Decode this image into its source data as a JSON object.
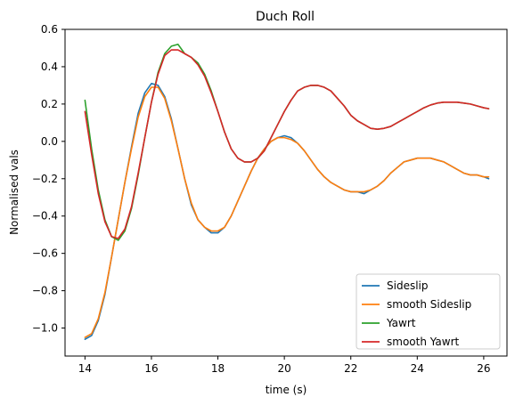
{
  "chart_data": {
    "type": "line",
    "title": "Duch Roll",
    "xlabel": "time (s)",
    "ylabel": "Normalised vals",
    "xlim": [
      13.4,
      26.7
    ],
    "ylim": [
      -1.15,
      0.6
    ],
    "xticks": [
      14,
      16,
      18,
      20,
      22,
      24,
      26
    ],
    "yticks": [
      -1.0,
      -0.8,
      -0.6,
      -0.4,
      -0.2,
      0.0,
      0.2,
      0.4,
      0.6
    ],
    "ytick_labels": [
      "−1.0",
      "−0.8",
      "−0.6",
      "−0.4",
      "−0.2",
      "0.0",
      "0.2",
      "0.4",
      "0.6"
    ],
    "grid": false,
    "legend_position": "lower-right",
    "series": [
      {
        "name": "Sideslip",
        "color": "#1f77b4",
        "x": [
          14.0,
          14.2,
          14.4,
          14.6,
          14.8,
          15.0,
          15.2,
          15.4,
          15.6,
          15.8,
          16.0,
          16.2,
          16.4,
          16.6,
          16.8,
          17.0,
          17.2,
          17.4,
          17.6,
          17.8,
          18.0,
          18.2,
          18.4,
          18.6,
          18.8,
          19.0,
          19.2,
          19.4,
          19.6,
          19.8,
          20.0,
          20.2,
          20.4,
          20.6,
          20.8,
          21.0,
          21.2,
          21.4,
          21.6,
          21.8,
          22.0,
          22.2,
          22.4,
          22.6,
          22.8,
          23.0,
          23.2,
          23.4,
          23.6,
          23.8,
          24.0,
          24.2,
          24.4,
          24.6,
          24.8,
          25.0,
          25.2,
          25.4,
          25.6,
          25.8,
          26.0,
          26.15
        ],
        "y": [
          -1.06,
          -1.04,
          -0.96,
          -0.82,
          -0.62,
          -0.42,
          -0.22,
          -0.03,
          0.15,
          0.26,
          0.31,
          0.3,
          0.24,
          0.12,
          -0.04,
          -0.2,
          -0.34,
          -0.42,
          -0.46,
          -0.49,
          -0.49,
          -0.46,
          -0.4,
          -0.32,
          -0.24,
          -0.16,
          -0.09,
          -0.04,
          0.0,
          0.02,
          0.03,
          0.02,
          -0.01,
          -0.05,
          -0.1,
          -0.15,
          -0.19,
          -0.22,
          -0.24,
          -0.26,
          -0.27,
          -0.27,
          -0.28,
          -0.26,
          -0.24,
          -0.21,
          -0.17,
          -0.14,
          -0.11,
          -0.1,
          -0.09,
          -0.09,
          -0.09,
          -0.1,
          -0.11,
          -0.13,
          -0.15,
          -0.17,
          -0.18,
          -0.18,
          -0.19,
          -0.2
        ]
      },
      {
        "name": "smooth Sideslip",
        "color": "#ff7f0e",
        "x": [
          14.0,
          14.2,
          14.4,
          14.6,
          14.8,
          15.0,
          15.2,
          15.4,
          15.6,
          15.8,
          16.0,
          16.2,
          16.4,
          16.6,
          16.8,
          17.0,
          17.2,
          17.4,
          17.6,
          17.8,
          18.0,
          18.2,
          18.4,
          18.6,
          18.8,
          19.0,
          19.2,
          19.4,
          19.6,
          19.8,
          20.0,
          20.2,
          20.4,
          20.6,
          20.8,
          21.0,
          21.2,
          21.4,
          21.6,
          21.8,
          22.0,
          22.2,
          22.4,
          22.6,
          22.8,
          23.0,
          23.2,
          23.4,
          23.6,
          23.8,
          24.0,
          24.2,
          24.4,
          24.6,
          24.8,
          25.0,
          25.2,
          25.4,
          25.6,
          25.8,
          26.0,
          26.15
        ],
        "y": [
          -1.05,
          -1.03,
          -0.95,
          -0.81,
          -0.62,
          -0.42,
          -0.22,
          -0.04,
          0.13,
          0.24,
          0.29,
          0.29,
          0.23,
          0.11,
          -0.04,
          -0.2,
          -0.33,
          -0.42,
          -0.46,
          -0.48,
          -0.48,
          -0.46,
          -0.4,
          -0.32,
          -0.24,
          -0.16,
          -0.09,
          -0.04,
          0.0,
          0.02,
          0.02,
          0.01,
          -0.01,
          -0.05,
          -0.1,
          -0.15,
          -0.19,
          -0.22,
          -0.24,
          -0.26,
          -0.27,
          -0.27,
          -0.27,
          -0.26,
          -0.24,
          -0.21,
          -0.17,
          -0.14,
          -0.11,
          -0.1,
          -0.09,
          -0.09,
          -0.09,
          -0.1,
          -0.11,
          -0.13,
          -0.15,
          -0.17,
          -0.18,
          -0.18,
          -0.19,
          -0.19
        ]
      },
      {
        "name": "Yawrt",
        "color": "#2ca02c",
        "x": [
          14.0,
          14.2,
          14.4,
          14.6,
          14.8,
          15.0,
          15.2,
          15.4,
          15.6,
          15.8,
          16.0,
          16.2,
          16.4,
          16.6,
          16.8,
          17.0,
          17.2,
          17.4,
          17.6,
          17.8,
          18.0,
          18.2,
          18.4,
          18.6,
          18.8,
          19.0,
          19.2,
          19.4,
          19.6,
          19.8,
          20.0,
          20.2,
          20.4,
          20.6,
          20.8,
          21.0,
          21.2,
          21.4,
          21.6,
          21.8,
          22.0,
          22.2,
          22.4,
          22.6,
          22.8,
          23.0,
          23.2,
          23.4,
          23.6,
          23.8,
          24.0,
          24.2,
          24.4,
          24.6,
          24.8,
          25.0,
          25.2,
          25.4,
          25.6,
          25.8,
          26.0,
          26.15
        ],
        "y": [
          0.22,
          -0.04,
          -0.26,
          -0.42,
          -0.51,
          -0.53,
          -0.48,
          -0.36,
          -0.18,
          0.02,
          0.21,
          0.37,
          0.47,
          0.51,
          0.52,
          0.47,
          0.45,
          0.42,
          0.36,
          0.27,
          0.16,
          0.05,
          -0.04,
          -0.09,
          -0.11,
          -0.11,
          -0.09,
          -0.05,
          0.02,
          0.09,
          0.16,
          0.22,
          0.27,
          0.29,
          0.3,
          0.3,
          0.29,
          0.27,
          0.23,
          0.19,
          0.14,
          0.11,
          0.09,
          0.07,
          0.065,
          0.07,
          0.08,
          0.1,
          0.12,
          0.14,
          0.16,
          0.18,
          0.195,
          0.205,
          0.21,
          0.21,
          0.21,
          0.205,
          0.2,
          0.19,
          0.18,
          0.175
        ]
      },
      {
        "name": "smooth Yawrt",
        "color": "#d62728",
        "x": [
          14.0,
          14.2,
          14.4,
          14.6,
          14.8,
          15.0,
          15.2,
          15.4,
          15.6,
          15.8,
          16.0,
          16.2,
          16.4,
          16.6,
          16.8,
          17.0,
          17.2,
          17.4,
          17.6,
          17.8,
          18.0,
          18.2,
          18.4,
          18.6,
          18.8,
          19.0,
          19.2,
          19.4,
          19.6,
          19.8,
          20.0,
          20.2,
          20.4,
          20.6,
          20.8,
          21.0,
          21.2,
          21.4,
          21.6,
          21.8,
          22.0,
          22.2,
          22.4,
          22.6,
          22.8,
          23.0,
          23.2,
          23.4,
          23.6,
          23.8,
          24.0,
          24.2,
          24.4,
          24.6,
          24.8,
          25.0,
          25.2,
          25.4,
          25.6,
          25.8,
          26.0,
          26.15
        ],
        "y": [
          0.16,
          -0.07,
          -0.28,
          -0.43,
          -0.51,
          -0.52,
          -0.47,
          -0.35,
          -0.17,
          0.02,
          0.21,
          0.36,
          0.46,
          0.49,
          0.49,
          0.47,
          0.45,
          0.41,
          0.35,
          0.26,
          0.16,
          0.05,
          -0.04,
          -0.09,
          -0.11,
          -0.11,
          -0.09,
          -0.05,
          0.02,
          0.09,
          0.16,
          0.22,
          0.27,
          0.29,
          0.3,
          0.3,
          0.29,
          0.27,
          0.23,
          0.19,
          0.14,
          0.11,
          0.09,
          0.07,
          0.065,
          0.07,
          0.08,
          0.1,
          0.12,
          0.14,
          0.16,
          0.18,
          0.195,
          0.205,
          0.21,
          0.21,
          0.21,
          0.205,
          0.2,
          0.19,
          0.18,
          0.175
        ]
      }
    ]
  }
}
